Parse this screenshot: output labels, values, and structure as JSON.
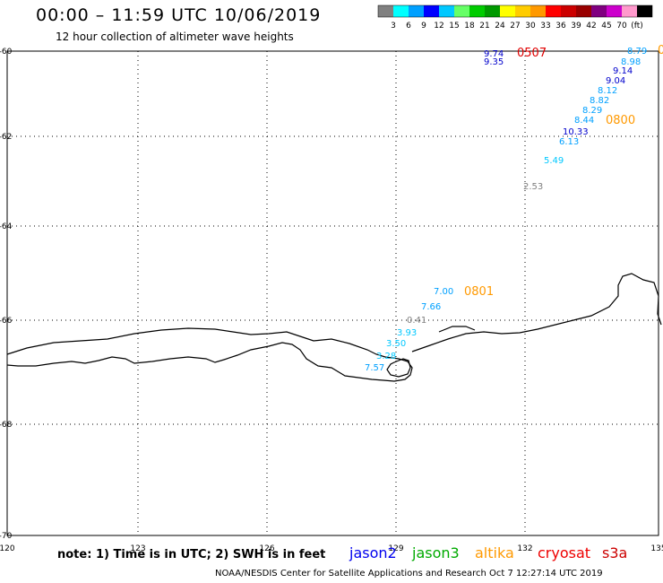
{
  "header": {
    "title": "00:00 – 11:59 UTC 10/06/2019",
    "subtitle": "12 hour collection of altimeter wave heights"
  },
  "scale": {
    "colors": [
      "#808080",
      "#00ffff",
      "#00a0ff",
      "#0000ff",
      "#00c8ff",
      "#66ff66",
      "#00cc00",
      "#009900",
      "#ffff00",
      "#ffcc00",
      "#ff9900",
      "#ff0000",
      "#cc0000",
      "#990000",
      "#800080",
      "#cc00cc",
      "#ff99cc",
      "#000000"
    ],
    "labels": [
      "3",
      "6",
      "9",
      "12",
      "15",
      "18",
      "21",
      "24",
      "27",
      "30",
      "33",
      "36",
      "39",
      "42",
      "45",
      "70",
      "(ft)"
    ]
  },
  "axes": {
    "lon_labels": [
      "120",
      "123",
      "126",
      "129",
      "132",
      "135"
    ],
    "lat_labels": [
      "-60",
      "-62",
      "-64",
      "-66",
      "-68",
      "-70"
    ]
  },
  "observations": [
    {
      "text": "9.74",
      "color": "#0000cc"
    },
    {
      "text": "9.35",
      "color": "#0000cc"
    },
    {
      "text": "0507",
      "color": "#e00000",
      "big": true
    },
    {
      "text": "8.79",
      "color": "#00a0ff"
    },
    {
      "text": "8.98",
      "color": "#00a0ff"
    },
    {
      "text": "9.14",
      "color": "#0000cc"
    },
    {
      "text": "9.04",
      "color": "#0000cc"
    },
    {
      "text": "8.12",
      "color": "#00a0ff"
    },
    {
      "text": "8.82",
      "color": "#00a0ff"
    },
    {
      "text": "8.29",
      "color": "#00a0ff"
    },
    {
      "text": "8.44",
      "color": "#00a0ff"
    },
    {
      "text": "0800",
      "color": "#ff9900",
      "big": true
    },
    {
      "text": "10.33",
      "color": "#0000cc"
    },
    {
      "text": "6.13",
      "color": "#00a0ff"
    },
    {
      "text": "5.49",
      "color": "#00c8ff"
    },
    {
      "text": "2.53",
      "color": "#808080"
    },
    {
      "text": "7.00",
      "color": "#00a0ff"
    },
    {
      "text": "0801",
      "color": "#ff9900",
      "big": true
    },
    {
      "text": "7.66",
      "color": "#00a0ff"
    },
    {
      "text": "0.41",
      "color": "#808080"
    },
    {
      "text": "3.93",
      "color": "#00c8ff"
    },
    {
      "text": "3.50",
      "color": "#00c8ff"
    },
    {
      "text": "3.28",
      "color": "#00c8ff"
    },
    {
      "text": "7.57",
      "color": "#00a0ff"
    },
    {
      "text": "0",
      "color": "#ff9900",
      "big": true
    }
  ],
  "note": "note: 1) Time is in UTC; 2) SWH is in feet",
  "satellites": [
    {
      "name": "jason2",
      "color": "#0000ee"
    },
    {
      "name": "jason3",
      "color": "#00aa00"
    },
    {
      "name": "altika",
      "color": "#ff9900"
    },
    {
      "name": "cryosat",
      "color": "#ee0000"
    },
    {
      "name": "s3a",
      "color": "#cc0000"
    }
  ],
  "footer": "NOAA/NESDIS Center for Satellite Applications and Research     Oct  7 12:27:14 UTC 2019"
}
